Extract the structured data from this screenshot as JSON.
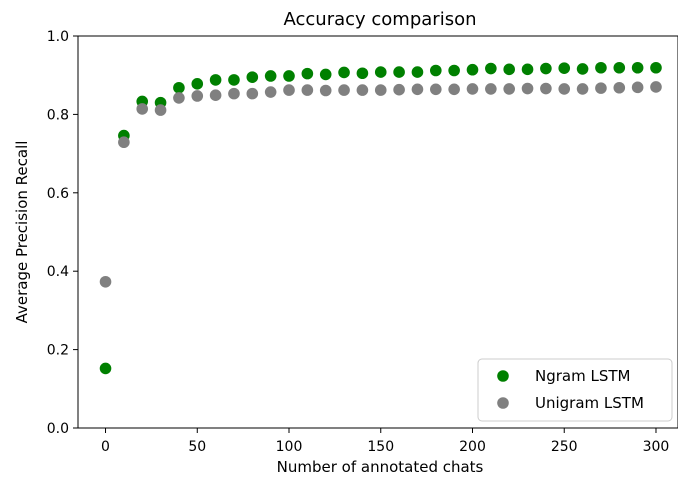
{
  "chart_data": {
    "type": "scatter",
    "title": "Accuracy comparison",
    "xlabel": "Number of annotated chats",
    "ylabel": "Average Precision Recall",
    "xlim": [
      -15,
      312
    ],
    "ylim": [
      0.0,
      1.0
    ],
    "xticks": [
      0,
      50,
      100,
      150,
      200,
      250,
      300
    ],
    "yticks": [
      0.0,
      0.2,
      0.4,
      0.6,
      0.8,
      1.0
    ],
    "xtick_labels": [
      "0",
      "50",
      "100",
      "150",
      "200",
      "250",
      "300"
    ],
    "ytick_labels": [
      "0.0",
      "0.2",
      "0.4",
      "0.6",
      "0.8",
      "1.0"
    ],
    "grid": false,
    "legend_position": "bottom-right",
    "series": [
      {
        "name": "Ngram LSTM",
        "color": "#008000",
        "x": [
          0,
          10,
          20,
          30,
          40,
          50,
          60,
          70,
          80,
          90,
          100,
          110,
          120,
          130,
          140,
          150,
          160,
          170,
          180,
          190,
          200,
          210,
          220,
          230,
          240,
          250,
          260,
          270,
          280,
          290,
          300
        ],
        "y": [
          0.152,
          0.746,
          0.833,
          0.83,
          0.868,
          0.878,
          0.888,
          0.888,
          0.895,
          0.898,
          0.898,
          0.904,
          0.902,
          0.907,
          0.905,
          0.908,
          0.908,
          0.908,
          0.912,
          0.912,
          0.914,
          0.917,
          0.915,
          0.915,
          0.917,
          0.918,
          0.916,
          0.919,
          0.919,
          0.919,
          0.919
        ]
      },
      {
        "name": "Unigram LSTM",
        "color": "#808080",
        "x": [
          0,
          10,
          20,
          30,
          40,
          50,
          60,
          70,
          80,
          90,
          100,
          110,
          120,
          130,
          140,
          150,
          160,
          170,
          180,
          190,
          200,
          210,
          220,
          230,
          240,
          250,
          260,
          270,
          280,
          290,
          300
        ],
        "y": [
          0.373,
          0.729,
          0.814,
          0.811,
          0.842,
          0.847,
          0.849,
          0.853,
          0.853,
          0.857,
          0.862,
          0.862,
          0.861,
          0.862,
          0.862,
          0.862,
          0.863,
          0.864,
          0.864,
          0.864,
          0.865,
          0.865,
          0.865,
          0.866,
          0.866,
          0.865,
          0.865,
          0.867,
          0.868,
          0.869,
          0.87
        ]
      }
    ]
  }
}
